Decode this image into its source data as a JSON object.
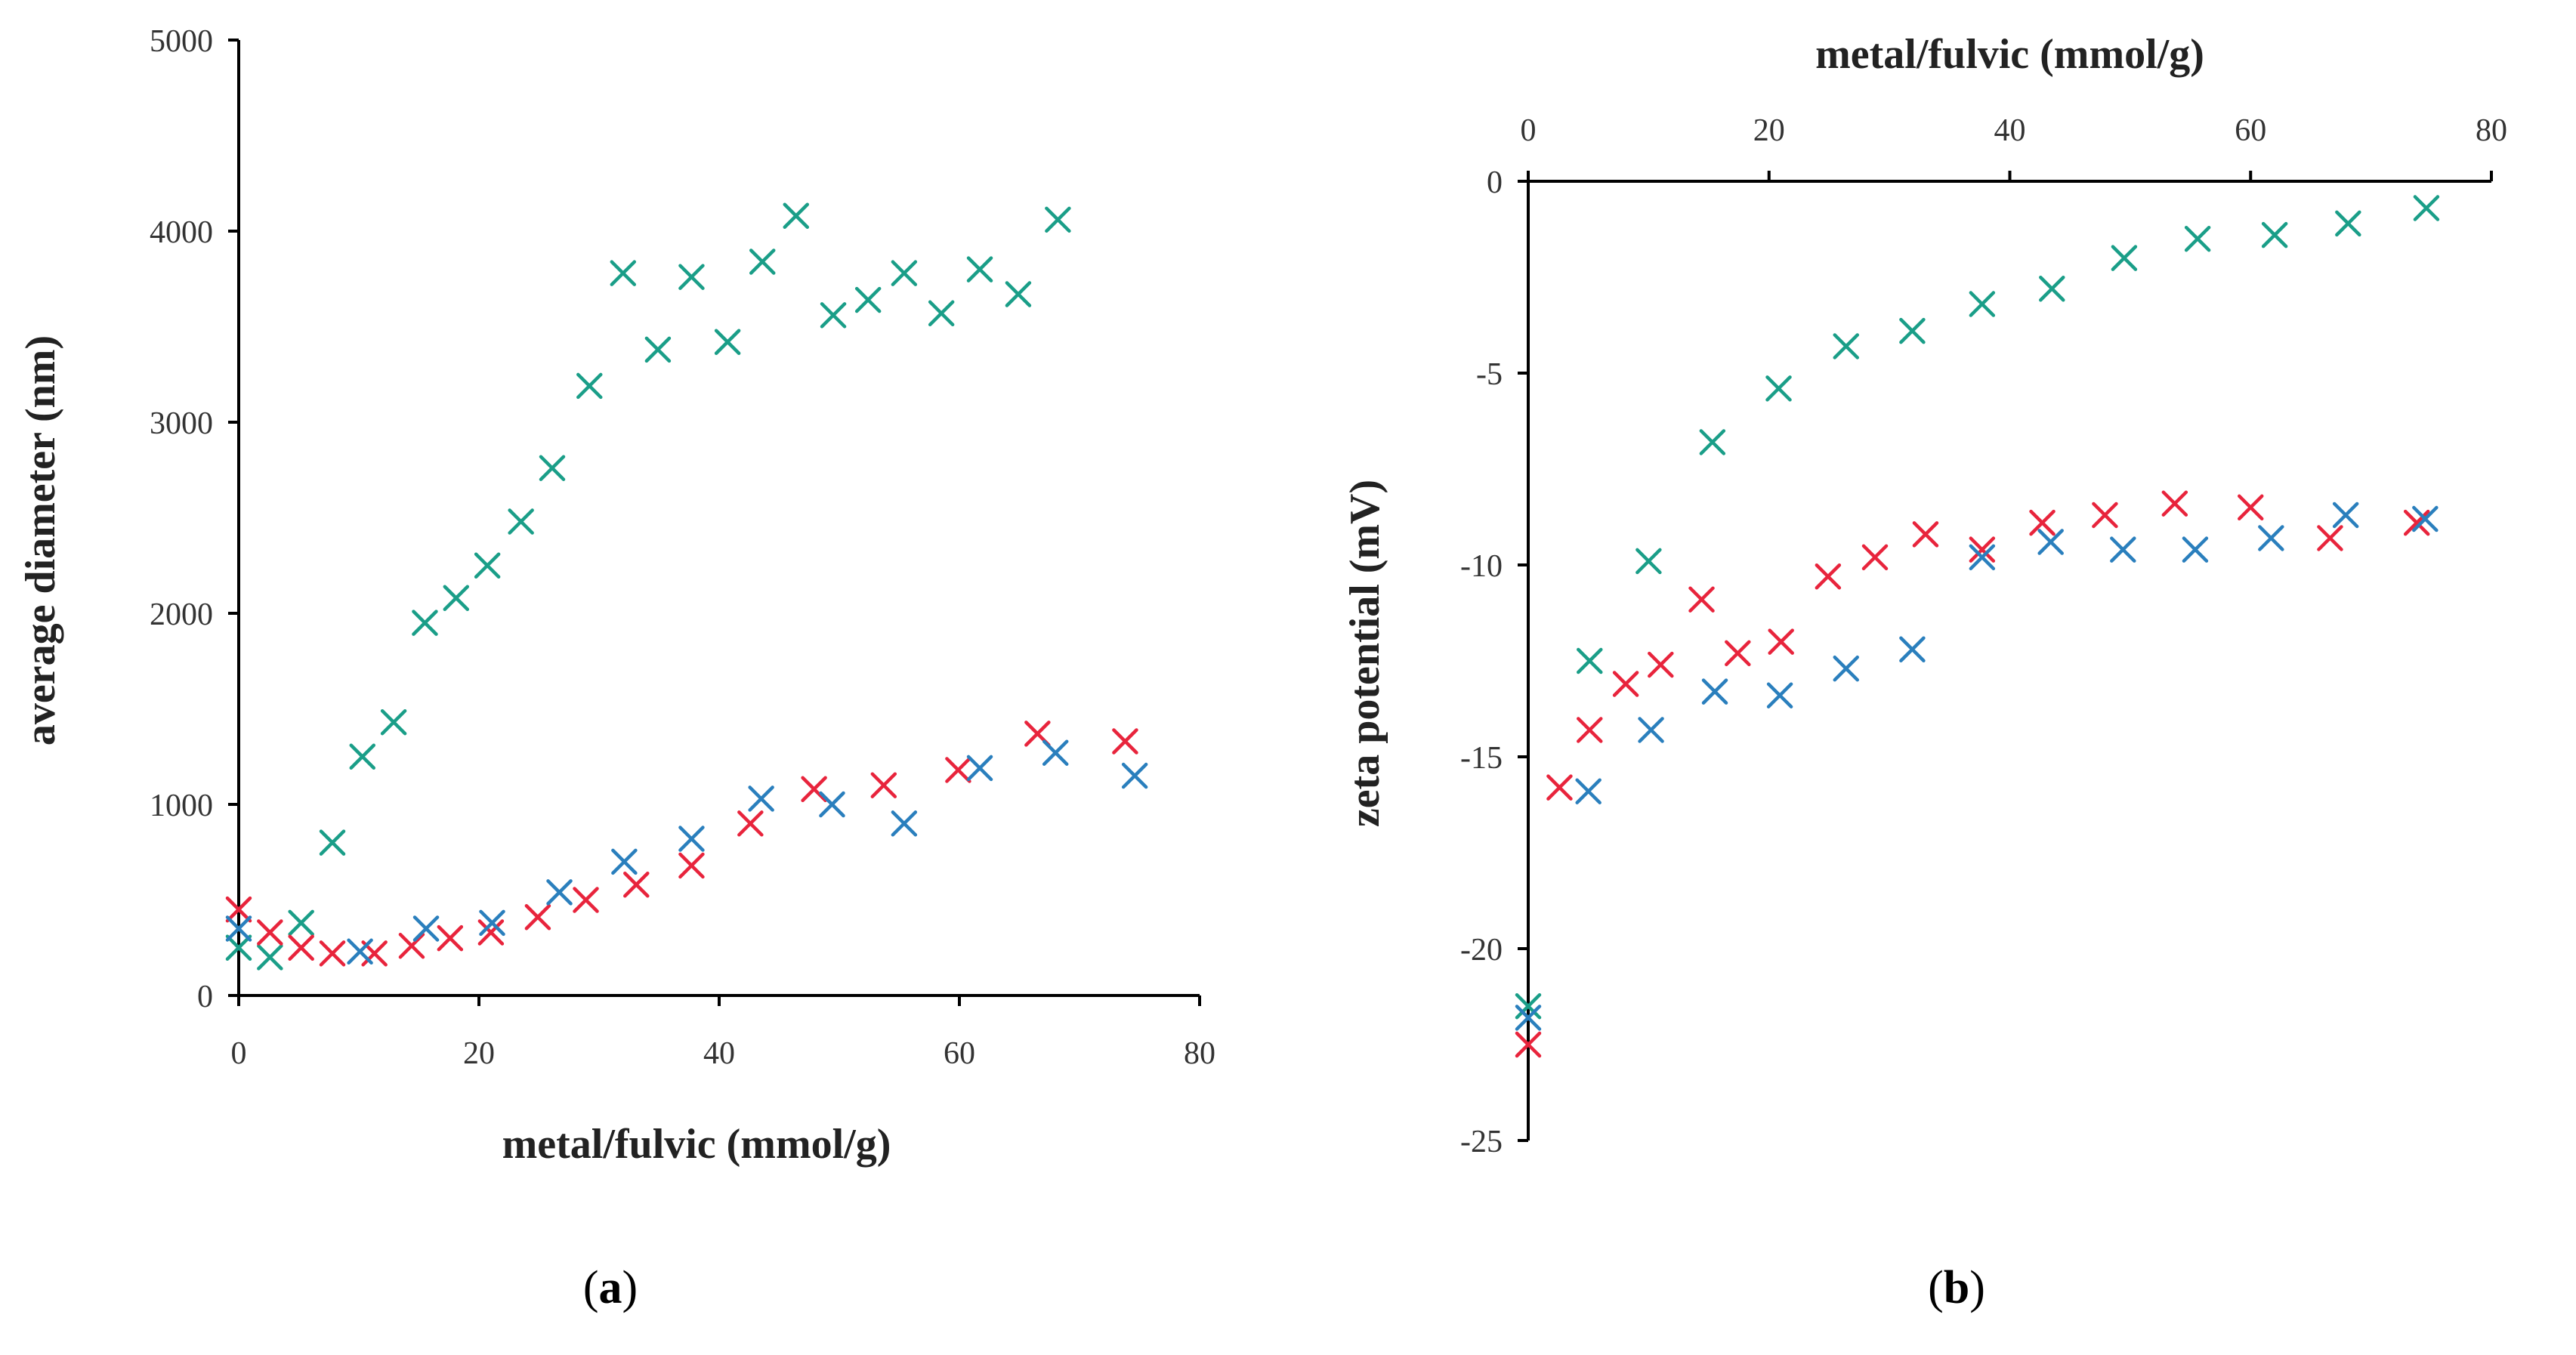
{
  "chart_data": [
    {
      "type": "scatter",
      "panel": "a",
      "panel_label": "a",
      "title": "",
      "xlabel": "metal/fulvic (mmol/g)",
      "ylabel": "average diameter (nm)",
      "xlim": [
        0,
        80
      ],
      "ylim": [
        0,
        5000
      ],
      "xticks": [
        0,
        20,
        40,
        60,
        80
      ],
      "yticks": [
        0,
        1000,
        2000,
        3000,
        4000,
        5000
      ],
      "x_axis_position": "bottom",
      "grid": false,
      "legend": "none",
      "series": [
        {
          "color": "#1a9e88",
          "marker": "x",
          "points": [
            [
              0,
              250
            ],
            [
              2.6,
              200
            ],
            [
              5.2,
              380
            ],
            [
              7.8,
              800
            ],
            [
              10.3,
              1250
            ],
            [
              12.9,
              1430
            ],
            [
              15.5,
              1950
            ],
            [
              18.1,
              2080
            ],
            [
              20.7,
              2250
            ],
            [
              23.5,
              2480
            ],
            [
              26.1,
              2760
            ],
            [
              29.2,
              3190
            ],
            [
              32.0,
              3780
            ],
            [
              34.9,
              3380
            ],
            [
              37.7,
              3760
            ],
            [
              40.7,
              3420
            ],
            [
              43.6,
              3840
            ],
            [
              46.4,
              4080
            ],
            [
              49.5,
              3560
            ],
            [
              52.4,
              3640
            ],
            [
              55.4,
              3780
            ],
            [
              58.5,
              3570
            ],
            [
              61.7,
              3800
            ],
            [
              64.9,
              3670
            ],
            [
              68.2,
              4060
            ]
          ]
        },
        {
          "color": "#e8243c",
          "marker": "x",
          "points": [
            [
              0,
              450
            ],
            [
              2.6,
              330
            ],
            [
              5.2,
              250
            ],
            [
              7.8,
              220
            ],
            [
              11.3,
              220
            ],
            [
              14.4,
              260
            ],
            [
              17.6,
              300
            ],
            [
              21.0,
              330
            ],
            [
              24.9,
              410
            ],
            [
              28.9,
              500
            ],
            [
              33.1,
              580
            ],
            [
              37.7,
              680
            ],
            [
              42.6,
              900
            ],
            [
              47.9,
              1080
            ],
            [
              53.7,
              1100
            ],
            [
              59.9,
              1180
            ],
            [
              66.5,
              1370
            ],
            [
              73.8,
              1330
            ]
          ]
        },
        {
          "color": "#2a7fbd",
          "marker": "x",
          "points": [
            [
              0,
              350
            ],
            [
              10.1,
              230
            ],
            [
              15.6,
              350
            ],
            [
              21.1,
              380
            ],
            [
              26.7,
              540
            ],
            [
              32.1,
              700
            ],
            [
              37.7,
              820
            ],
            [
              43.5,
              1030
            ],
            [
              49.4,
              1000
            ],
            [
              55.4,
              900
            ],
            [
              61.7,
              1190
            ],
            [
              68.0,
              1270
            ],
            [
              74.6,
              1150
            ]
          ]
        }
      ]
    },
    {
      "type": "scatter",
      "panel": "b",
      "panel_label": "b",
      "title": "",
      "xlabel": "metal/fulvic (mmol/g)",
      "ylabel": "zeta potential (mV)",
      "xlim": [
        0,
        80
      ],
      "ylim": [
        -25,
        0
      ],
      "xticks": [
        0,
        20,
        40,
        60,
        80
      ],
      "yticks": [
        0,
        -5,
        -10,
        -15,
        -20,
        -25
      ],
      "x_axis_position": "top",
      "grid": false,
      "legend": "none",
      "series": [
        {
          "color": "#1a9e88",
          "marker": "x",
          "points": [
            [
              0,
              -21.5
            ],
            [
              5.1,
              -12.5
            ],
            [
              10.0,
              -9.9
            ],
            [
              15.3,
              -6.8
            ],
            [
              20.8,
              -5.4
            ],
            [
              26.4,
              -4.3
            ],
            [
              31.9,
              -3.9
            ],
            [
              37.7,
              -3.2
            ],
            [
              43.5,
              -2.8
            ],
            [
              49.5,
              -2.0
            ],
            [
              55.6,
              -1.5
            ],
            [
              62.0,
              -1.4
            ],
            [
              68.1,
              -1.1
            ],
            [
              74.6,
              -0.7
            ]
          ]
        },
        {
          "color": "#e8243c",
          "marker": "x",
          "points": [
            [
              0,
              -22.5
            ],
            [
              2.6,
              -15.8
            ],
            [
              5.1,
              -14.3
            ],
            [
              8.1,
              -13.1
            ],
            [
              11.0,
              -12.6
            ],
            [
              14.4,
              -10.9
            ],
            [
              17.4,
              -12.3
            ],
            [
              21.0,
              -12.0
            ],
            [
              24.9,
              -10.3
            ],
            [
              28.8,
              -9.8
            ],
            [
              33.0,
              -9.2
            ],
            [
              37.7,
              -9.6
            ],
            [
              42.7,
              -8.9
            ],
            [
              47.9,
              -8.7
            ],
            [
              53.7,
              -8.4
            ],
            [
              60.0,
              -8.5
            ],
            [
              66.6,
              -9.3
            ],
            [
              73.8,
              -8.9
            ]
          ]
        },
        {
          "color": "#2a7fbd",
          "marker": "x",
          "points": [
            [
              0,
              -21.8
            ],
            [
              5.0,
              -15.9
            ],
            [
              10.2,
              -14.3
            ],
            [
              15.5,
              -13.3
            ],
            [
              20.9,
              -13.4
            ],
            [
              26.4,
              -12.7
            ],
            [
              31.9,
              -12.2
            ],
            [
              37.7,
              -9.8
            ],
            [
              43.4,
              -9.4
            ],
            [
              49.4,
              -9.6
            ],
            [
              55.4,
              -9.6
            ],
            [
              61.7,
              -9.3
            ],
            [
              67.9,
              -8.7
            ],
            [
              74.5,
              -8.8
            ]
          ]
        }
      ]
    }
  ]
}
